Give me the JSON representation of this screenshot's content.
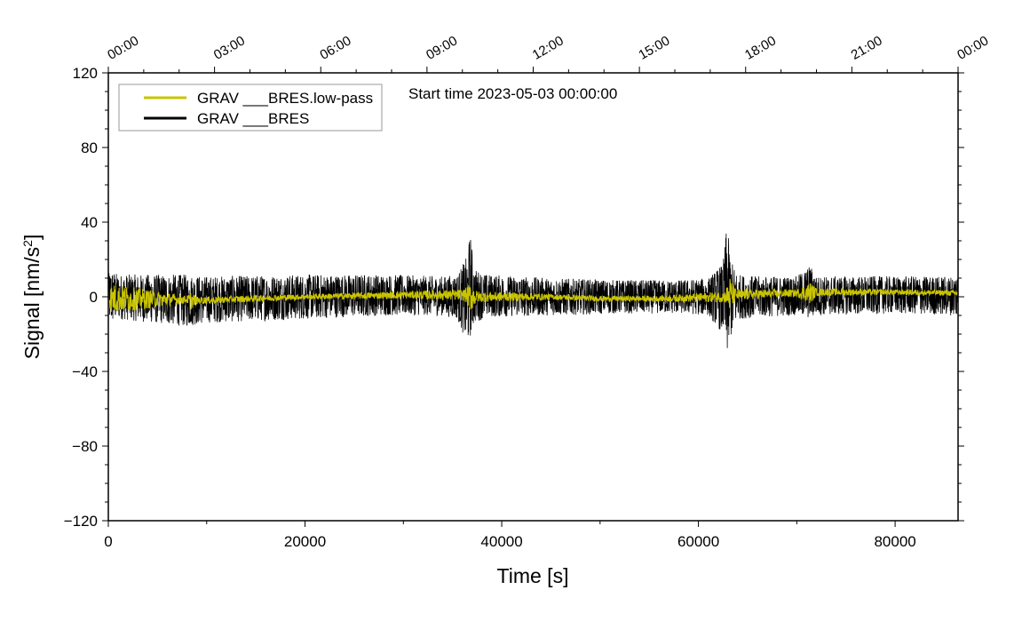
{
  "chart_data": {
    "type": "line",
    "xlabel": "Time [s]",
    "ylabel_main": "Signal [nm/s",
    "ylabel_sup": "2",
    "ylabel_tail": "]",
    "xlim": [
      0,
      86400
    ],
    "ylim": [
      -120,
      120
    ],
    "x_ticks": [
      0,
      20000,
      40000,
      60000,
      80000
    ],
    "x_tick_labels": [
      "0",
      "20000",
      "40000",
      "60000",
      "80000"
    ],
    "y_ticks": [
      120,
      80,
      40,
      0,
      -40,
      -80,
      -120
    ],
    "y_tick_labels": [
      "120",
      "80",
      "40",
      "0",
      "−40",
      "−80",
      "−120"
    ],
    "top_axis_ticks_seconds": [
      0,
      10800,
      21600,
      32400,
      43200,
      54000,
      64800,
      75600,
      86400
    ],
    "top_axis_labels": [
      "00:00",
      "03:00",
      "06:00",
      "09:00",
      "12:00",
      "15:00",
      "18:00",
      "21:00",
      "00:00"
    ],
    "annotation": "Start time 2023-05-03 00:00:00",
    "legend_position": "top-left",
    "grid": false,
    "series": [
      {
        "name": "GRAV ___BRES.low-pass",
        "color": "#c9c400",
        "envelope_x": [
          0,
          300,
          8000,
          8400,
          9000,
          20000,
          30000,
          36200,
          36900,
          37500,
          45000,
          50000,
          56000,
          62700,
          63200,
          63800,
          70000,
          71400,
          72000,
          80000,
          86400
        ],
        "envelope_center": [
          -1,
          -1,
          -1.5,
          -2,
          -2,
          0,
          1,
          1,
          0,
          0,
          0,
          -1,
          -1,
          0,
          1,
          1,
          2,
          2,
          2.5,
          2.5,
          2
        ],
        "envelope_half_width": [
          2,
          8,
          2,
          5,
          2,
          1.5,
          2,
          3,
          8,
          3,
          1.5,
          1.5,
          1.5,
          3,
          10,
          3,
          2,
          6,
          2,
          1.5,
          1.5
        ]
      },
      {
        "name": "GRAV ___BRES",
        "color": "#000000",
        "envelope_x": [
          0,
          300,
          1000,
          8000,
          10000,
          20000,
          28000,
          34000,
          35500,
          36500,
          36800,
          37200,
          38500,
          45000,
          52000,
          58000,
          61000,
          62500,
          62900,
          63300,
          64000,
          66000,
          70000,
          71400,
          72000,
          80000,
          86000,
          86400
        ],
        "envelope_upper": [
          12,
          15,
          12,
          12,
          11,
          12,
          12,
          11,
          12,
          22,
          35,
          15,
          12,
          10,
          9,
          9,
          10,
          18,
          40,
          20,
          12,
          11,
          11,
          17,
          11,
          11,
          11,
          14
        ],
        "envelope_lower": [
          -12,
          -15,
          -12,
          -16,
          -14,
          -12,
          -10,
          -10,
          -12,
          -26,
          -22,
          -14,
          -11,
          -10,
          -9,
          -9,
          -10,
          -20,
          -33,
          -22,
          -12,
          -11,
          -10,
          -12,
          -10,
          -9,
          -10,
          -12
        ]
      }
    ]
  }
}
